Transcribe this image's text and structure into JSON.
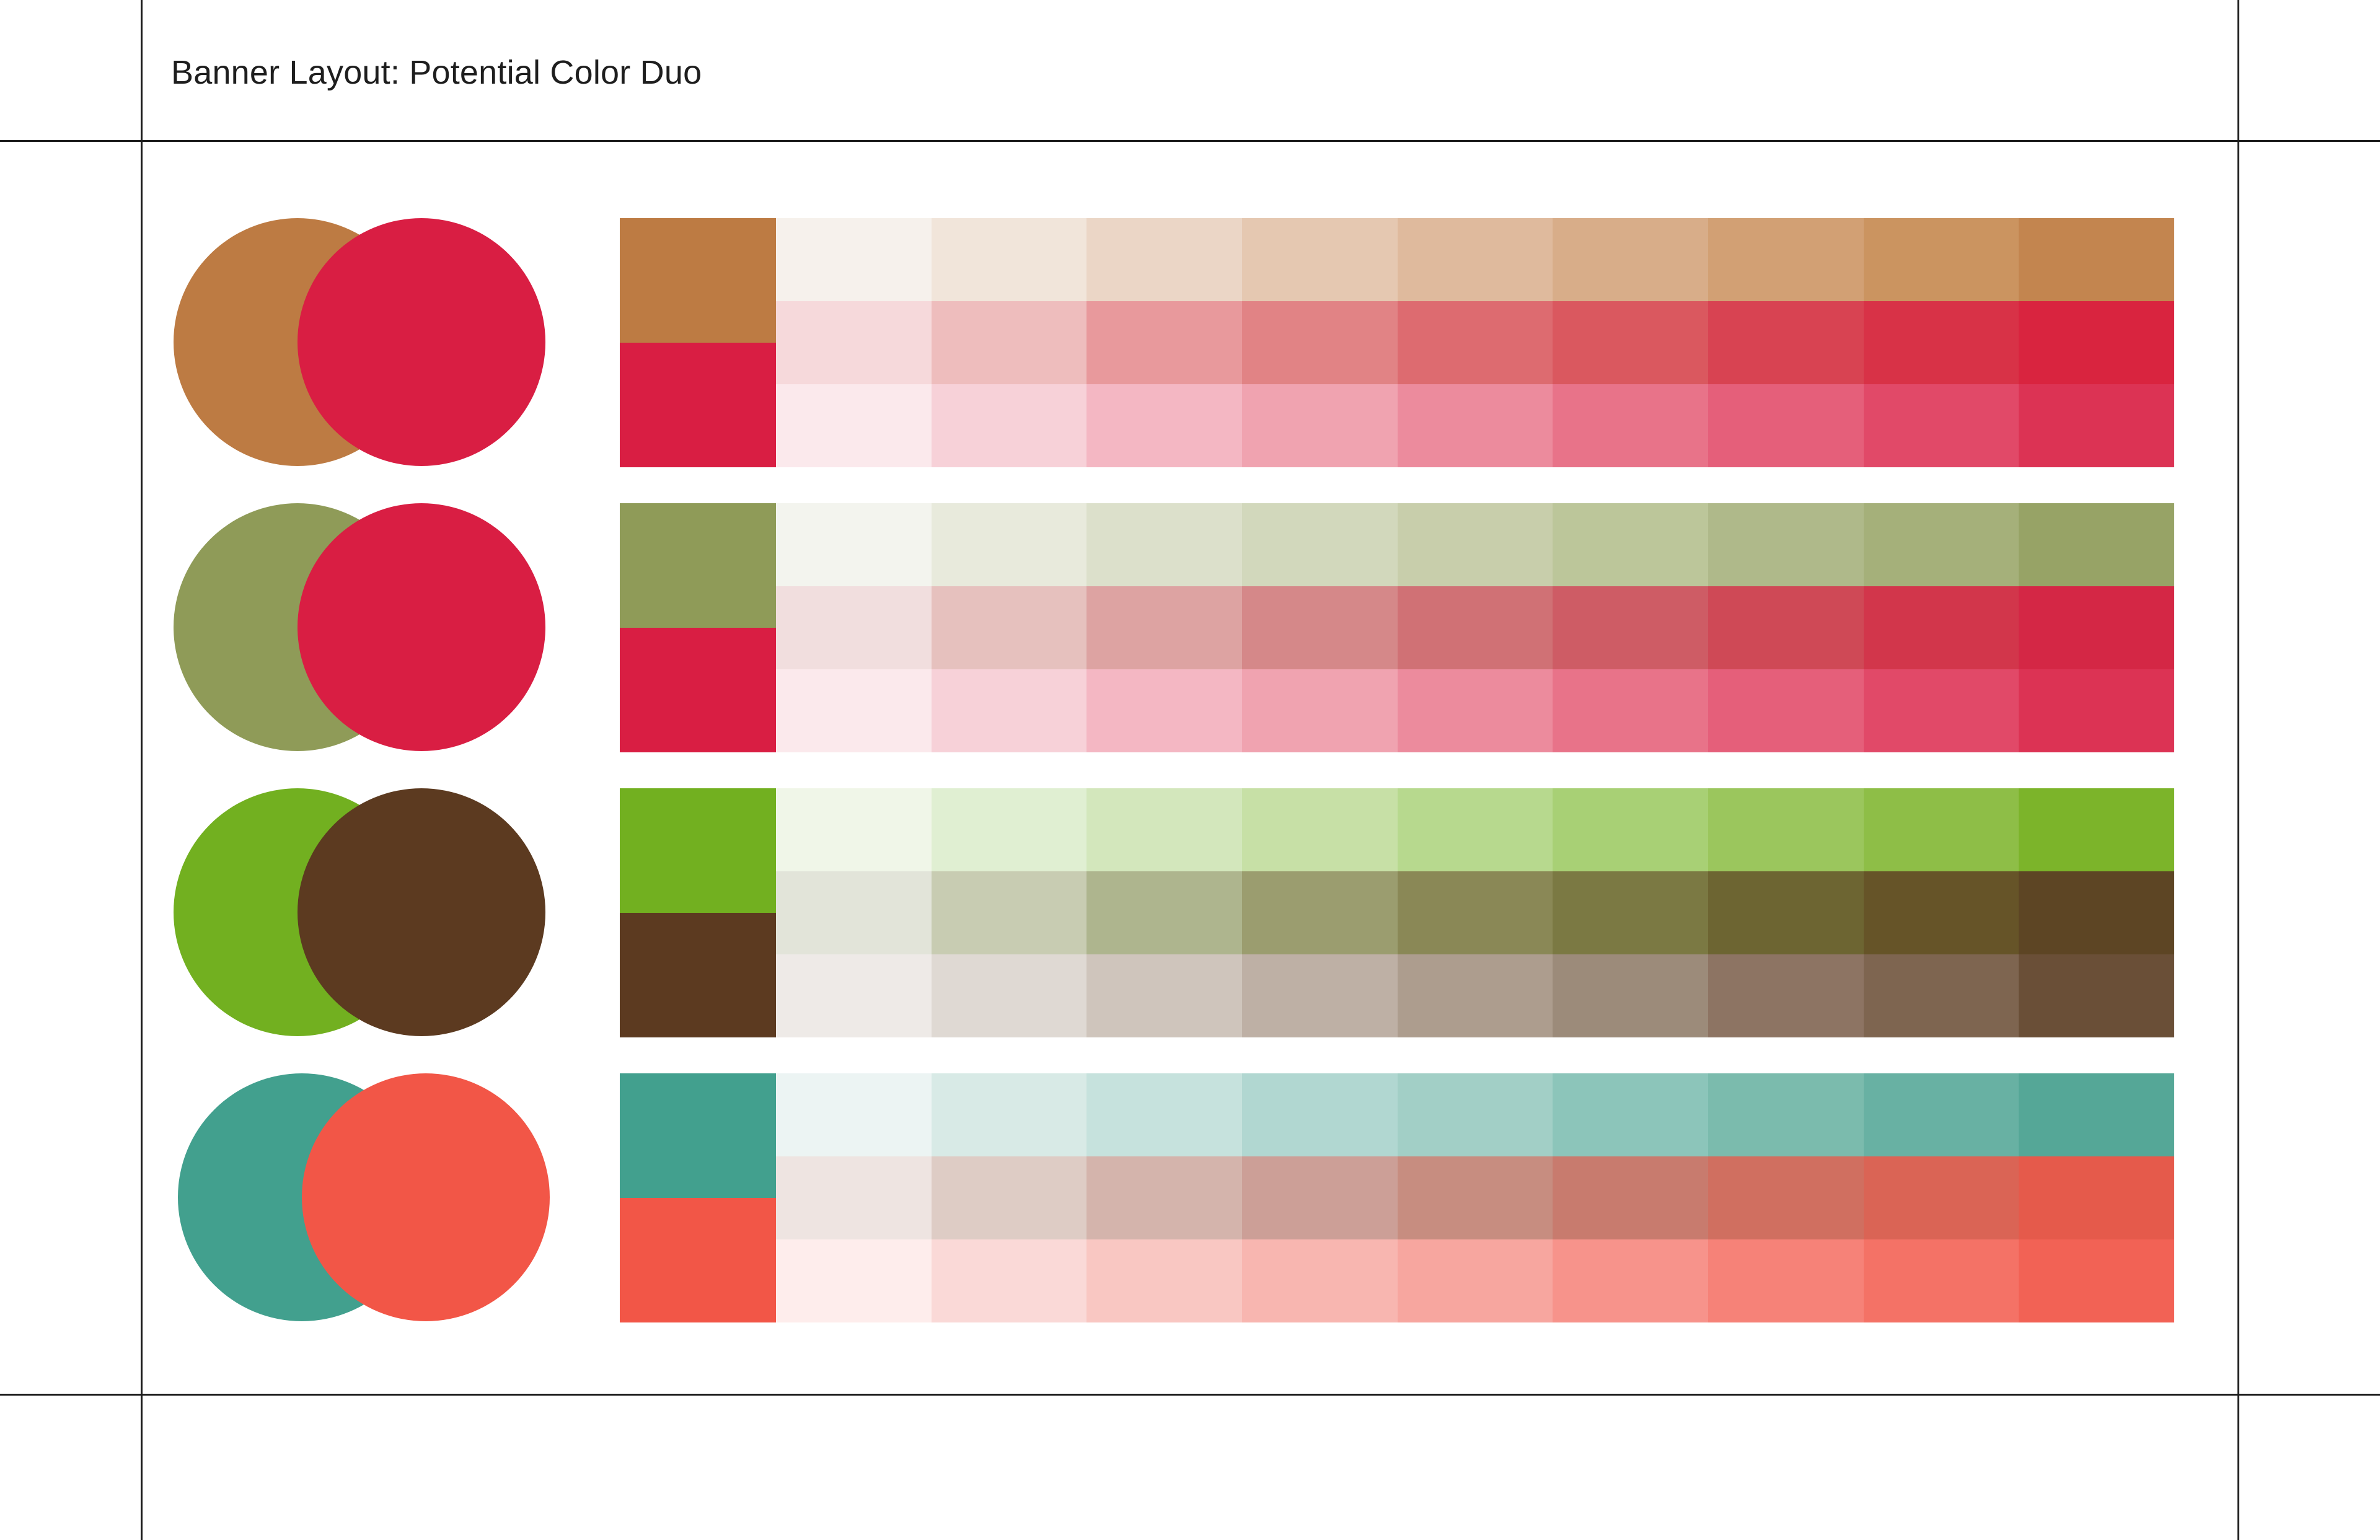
{
  "title": "Banner Layout: Potential Color Duo",
  "duos": [
    {
      "primary": "#BD7B43",
      "secondary": "#D91E43",
      "tints": [
        [
          "#F6F1EC",
          "#F1E5DA",
          "#EBD6C6",
          "#E5C8B1",
          "#DFBA9D",
          "#D8AD89",
          "#D2A074",
          "#CB9460",
          "#C3854F"
        ],
        [
          "#F6D9DB",
          "#EEBDBD",
          "#E8999C",
          "#E18385",
          "#DD6B70",
          "#DA585F",
          "#D84352",
          "#D83247",
          "#D9243F"
        ],
        [
          "#FBE9EC",
          "#F7D1D8",
          "#F4B7C3",
          "#F0A3B0",
          "#EC8B9D",
          "#E87389",
          "#E55F7A",
          "#E14968",
          "#DC3354"
        ]
      ]
    },
    {
      "primary": "#8F9B58",
      "secondary": "#D91E43",
      "tints": [
        [
          "#F3F4EE",
          "#E8EADC",
          "#DCE0CB",
          "#D2D8BC",
          "#C8CEAB",
          "#BCC69A",
          "#AFB98A",
          "#A5B07A",
          "#97A366"
        ],
        [
          "#F1DEDE",
          "#E6C1BE",
          "#DDA3A2",
          "#D58889",
          "#D07175",
          "#CE5C65",
          "#CF4956",
          "#D2364B",
          "#D42745"
        ],
        [
          "#FBE9EC",
          "#F7D1D8",
          "#F4B7C3",
          "#F0A3B0",
          "#EC8B9D",
          "#E87389",
          "#E55F7A",
          "#E14968",
          "#DC3354"
        ]
      ]
    },
    {
      "primary": "#72B020",
      "secondary": "#5C3A20",
      "tints": [
        [
          "#F0F6E8",
          "#E0EFD2",
          "#D3E7BC",
          "#C7E0A6",
          "#B7D98E",
          "#A8D075",
          "#9BC65D",
          "#8EBE47",
          "#7CB42A"
        ],
        [
          "#E2E4D9",
          "#C8CCB2",
          "#AEB58E",
          "#9B9D6F",
          "#8A8856",
          "#7B7943",
          "#6D6532",
          "#665428",
          "#5D4524"
        ],
        [
          "#EEEAE7",
          "#DFD9D3",
          "#CFC5BC",
          "#BEB0A5",
          "#AD9D8E",
          "#9C8B7A",
          "#8D7463",
          "#7E6550",
          "#6A4F37"
        ]
      ]
    },
    {
      "primary": "#42A08E",
      "secondary": "#F25647",
      "tints": [
        [
          "#ECF4F3",
          "#D8EAE6",
          "#C6E2DD",
          "#B1D7D1",
          "#A2CFC6",
          "#8CC5BA",
          "#7BBBAD",
          "#68B1A3",
          "#55A797"
        ],
        [
          "#EEE4E1",
          "#DECCC5",
          "#D4B4AC",
          "#CC9F97",
          "#C78D80",
          "#C87B6E",
          "#D06F60",
          "#DA6455",
          "#E55A4B"
        ],
        [
          "#FEEDEC",
          "#FAD9D7",
          "#F9C7C2",
          "#F8B6B0",
          "#F7A69F",
          "#F7938B",
          "#F68278",
          "#F47266",
          "#F26255"
        ]
      ]
    }
  ]
}
